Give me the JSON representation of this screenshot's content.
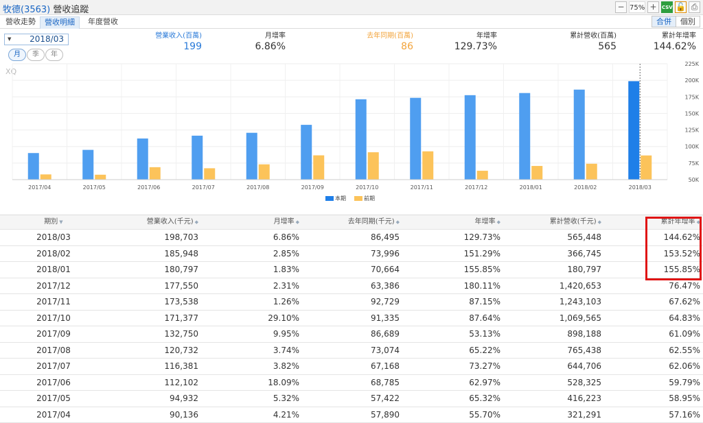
{
  "window": {
    "title_code": "牧德(3563)",
    "title_name": "營收追蹤",
    "zoom": "75%",
    "csv_label": "CSV"
  },
  "tabs": [
    {
      "label": "營收走勢",
      "active": false
    },
    {
      "label": "營收明細",
      "active": true
    },
    {
      "label": "年度營收",
      "active": false
    }
  ],
  "view_toggle": {
    "merged": "合併",
    "individual": "個別"
  },
  "date_select": {
    "value": "2018/03"
  },
  "period_buttons": [
    "月",
    "季",
    "年"
  ],
  "summary": {
    "revenue_label": "營業收入(百萬)",
    "revenue_value": "199",
    "mom_label": "月增率",
    "mom_value": "6.86%",
    "ly_label": "去年同期(百萬)",
    "ly_value": "86",
    "yoy_label": "年增率",
    "yoy_value": "129.73%",
    "cum_label": "累計營收(百萬)",
    "cum_value": "565",
    "cum_yoy_label": "累計年增率",
    "cum_yoy_value": "144.62%"
  },
  "chart_data": {
    "type": "bar",
    "watermark": "XQ",
    "categories": [
      "2017/04",
      "2017/05",
      "2017/06",
      "2017/07",
      "2017/08",
      "2017/09",
      "2017/10",
      "2017/11",
      "2017/12",
      "2018/01",
      "2018/02",
      "2018/03"
    ],
    "series": [
      {
        "name": "本期",
        "color": "#4f9ef0",
        "values": [
          90136,
          94932,
          112102,
          116381,
          120732,
          132750,
          171377,
          173538,
          177550,
          180797,
          185948,
          198703
        ]
      },
      {
        "name": "前期",
        "color": "#fcc35a",
        "values": [
          57890,
          57422,
          68785,
          67168,
          73074,
          86689,
          91335,
          92729,
          63386,
          70664,
          73996,
          86495
        ]
      }
    ],
    "highlight_color": "#1f7fe8",
    "ylim": [
      50000,
      225000
    ],
    "yticks": [
      "50K",
      "75K",
      "100K",
      "125K",
      "150K",
      "175K",
      "200K",
      "225K"
    ],
    "ytick_values": [
      50000,
      75000,
      100000,
      125000,
      150000,
      175000,
      200000,
      225000
    ],
    "legend_position": "bottom-center"
  },
  "table": {
    "headers": [
      "期別",
      "營業收入(千元)",
      "月增率",
      "去年同期(千元)",
      "年增率",
      "累計營收(千元)",
      "累計年增率"
    ],
    "rows": [
      [
        "2018/03",
        "198,703",
        "6.86%",
        "86,495",
        "129.73%",
        "565,448",
        "144.62%"
      ],
      [
        "2018/02",
        "185,948",
        "2.85%",
        "73,996",
        "151.29%",
        "366,745",
        "153.52%"
      ],
      [
        "2018/01",
        "180,797",
        "1.83%",
        "70,664",
        "155.85%",
        "180,797",
        "155.85%"
      ],
      [
        "2017/12",
        "177,550",
        "2.31%",
        "63,386",
        "180.11%",
        "1,420,653",
        "76.47%"
      ],
      [
        "2017/11",
        "173,538",
        "1.26%",
        "92,729",
        "87.15%",
        "1,243,103",
        "67.62%"
      ],
      [
        "2017/10",
        "171,377",
        "29.10%",
        "91,335",
        "87.64%",
        "1,069,565",
        "64.83%"
      ],
      [
        "2017/09",
        "132,750",
        "9.95%",
        "86,689",
        "53.13%",
        "898,188",
        "61.09%"
      ],
      [
        "2017/08",
        "120,732",
        "3.74%",
        "73,074",
        "65.22%",
        "765,438",
        "62.55%"
      ],
      [
        "2017/07",
        "116,381",
        "3.82%",
        "67,168",
        "73.27%",
        "644,706",
        "62.06%"
      ],
      [
        "2017/06",
        "112,102",
        "18.09%",
        "68,785",
        "62.97%",
        "528,325",
        "59.79%"
      ],
      [
        "2017/05",
        "94,932",
        "5.32%",
        "57,422",
        "65.32%",
        "416,223",
        "58.95%"
      ],
      [
        "2017/04",
        "90,136",
        "4.21%",
        "57,890",
        "55.70%",
        "321,291",
        "57.16%"
      ]
    ]
  }
}
